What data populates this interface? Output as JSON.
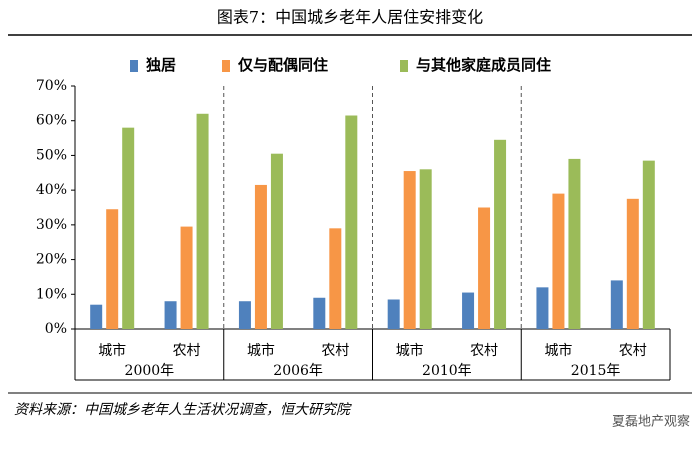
{
  "chart_data": {
    "type": "bar",
    "title": "图表7：中国城乡老年人居住安排变化",
    "categories": [
      "城市",
      "农村",
      "城市",
      "农村",
      "城市",
      "农村",
      "城市",
      "农村"
    ],
    "groups": [
      "2000年",
      "2006年",
      "2010年",
      "2015年"
    ],
    "series": [
      {
        "name": "独居",
        "color": "#4f81bd",
        "values": [
          7,
          8,
          8,
          9,
          8.5,
          10.5,
          12,
          14
        ]
      },
      {
        "name": "仅与配偶同住",
        "color": "#f79646",
        "values": [
          34.5,
          29.5,
          41.5,
          29,
          45.5,
          35,
          39,
          37.5
        ]
      },
      {
        "name": "与其他家庭成员同住",
        "color": "#9bbb59",
        "values": [
          58,
          62,
          50.5,
          61.5,
          46,
          54.5,
          49,
          48.5
        ]
      }
    ],
    "ylim": [
      0,
      70
    ],
    "yticks": [
      {
        "value": 0,
        "label": "0%"
      },
      {
        "value": 10,
        "label": "10%"
      },
      {
        "value": 20,
        "label": "20%"
      },
      {
        "value": 30,
        "label": "30%"
      },
      {
        "value": 40,
        "label": "40%"
      },
      {
        "value": 50,
        "label": "50%"
      },
      {
        "value": 60,
        "label": "60%"
      },
      {
        "value": 70,
        "label": "70%"
      }
    ],
    "source": "资料来源：中国城乡老年人生活状况调查，恒大研究院",
    "watermark": "夏磊地产观察"
  }
}
